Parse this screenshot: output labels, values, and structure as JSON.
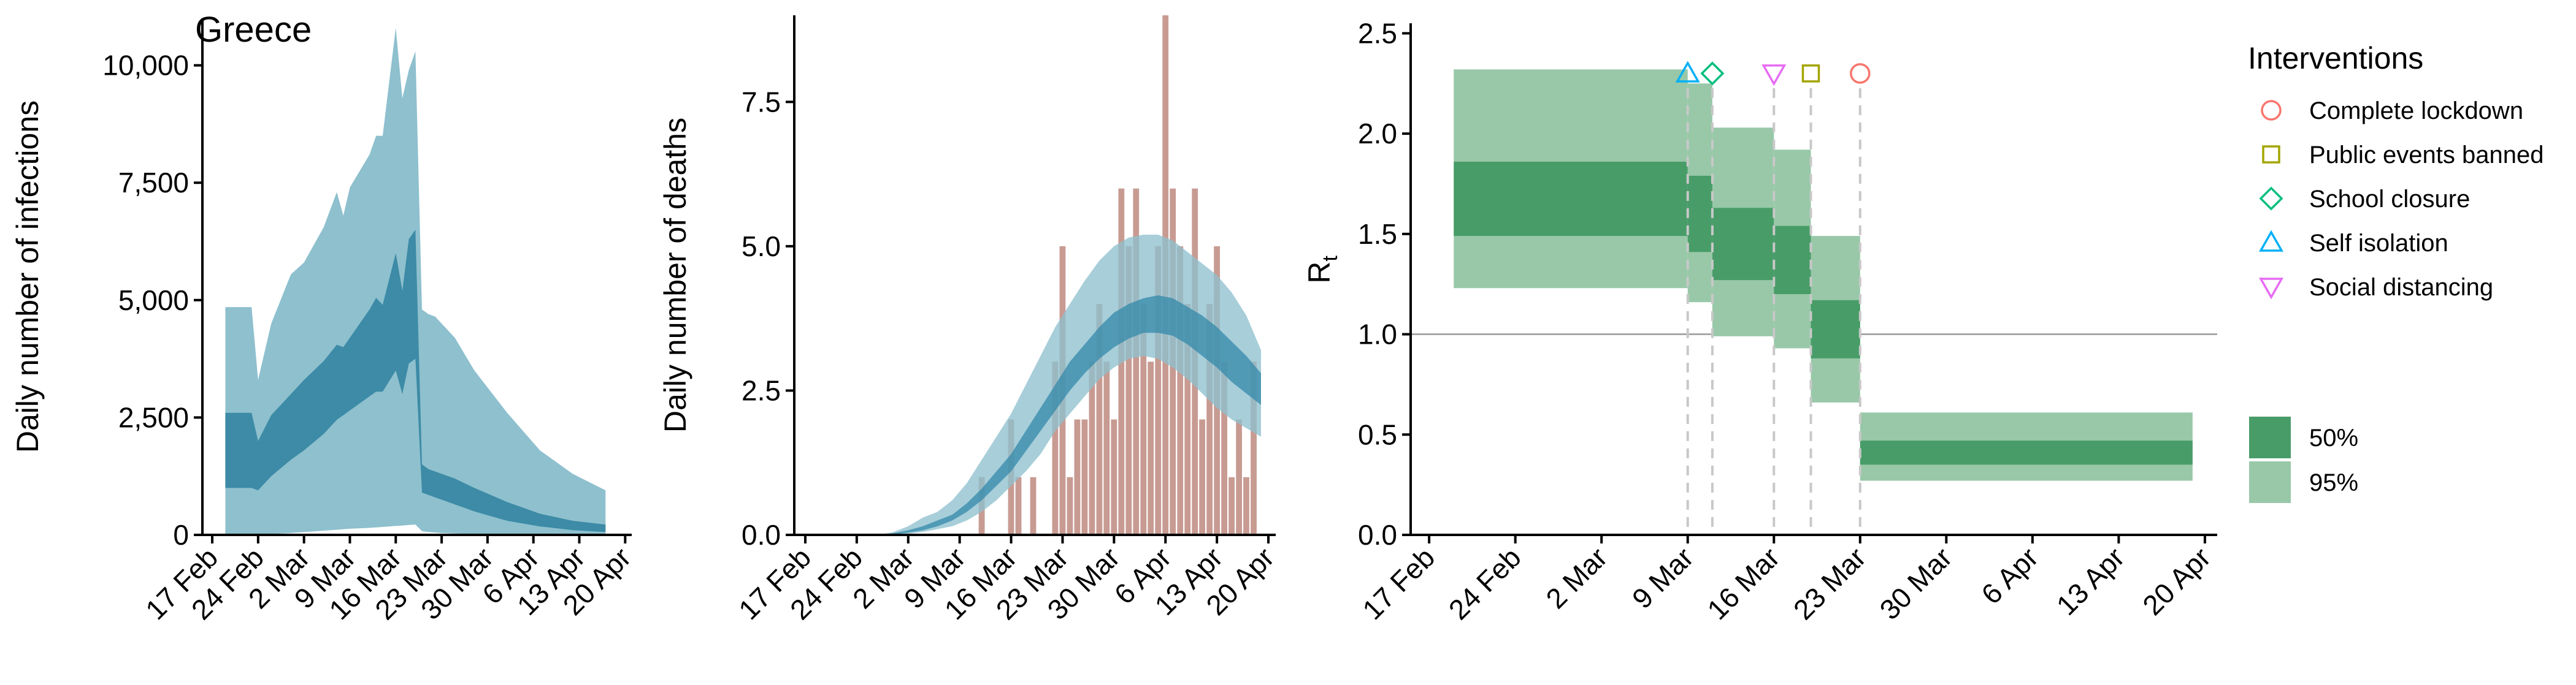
{
  "colors": {
    "infection_outer": "#8ec0ce",
    "infection_inner": "#3d8ba6",
    "death_outer": "#8ec0ce",
    "death_inner": "#2f86a8",
    "death_bar": "#c89b92",
    "rt_outer": "#98c8a8",
    "rt_inner": "#489c68",
    "ref_line": "#999999",
    "vline": "#c8c8c8",
    "complete_lockdown": "#f8766d",
    "public_events_banned": "#a3a500",
    "school_closure": "#00bf7d",
    "self_isolation": "#00b0f6",
    "social_distancing": "#e76bf3"
  },
  "chart_data": [
    {
      "id": "infections",
      "type": "area",
      "title": "Greece",
      "xlabel": "",
      "ylabel": "Daily number of infections",
      "x_tick_labels": [
        "17 Feb",
        "24 Feb",
        "2 Mar",
        "9 Mar",
        "16 Mar",
        "23 Mar",
        "30 Mar",
        "6 Apr",
        "13 Apr",
        "20 Apr"
      ],
      "x_ticks_day": [
        0,
        7,
        14,
        21,
        28,
        35,
        42,
        49,
        56,
        63
      ],
      "xlim_day": [
        -1.5,
        64
      ],
      "y_ticks": [
        0,
        2500,
        5000,
        7500,
        10000
      ],
      "y_tick_labels": [
        "0",
        "2,500",
        "5,000",
        "7,500",
        "10,000"
      ],
      "ylim": [
        0,
        11000
      ],
      "series": [
        {
          "band": "95%",
          "day": [
            2,
            6,
            7,
            9,
            12,
            14,
            17,
            19,
            20,
            21,
            24,
            25,
            26,
            28,
            29,
            30,
            31,
            32,
            33,
            34,
            35,
            37,
            40,
            45,
            50,
            55,
            60
          ],
          "upper": [
            4850,
            4850,
            3300,
            4500,
            5550,
            5800,
            6550,
            7300,
            6800,
            7400,
            8100,
            8500,
            8500,
            10800,
            9300,
            9900,
            10300,
            4800,
            4700,
            4650,
            4500,
            4200,
            3500,
            2600,
            1800,
            1300,
            950
          ],
          "lower": [
            0,
            0,
            0,
            20,
            40,
            60,
            90,
            110,
            120,
            130,
            150,
            160,
            170,
            190,
            200,
            210,
            220,
            80,
            60,
            50,
            40,
            30,
            20,
            10,
            5,
            3,
            0
          ]
        },
        {
          "band": "50%",
          "day": [
            2,
            6,
            7,
            9,
            12,
            14,
            17,
            19,
            20,
            21,
            24,
            25,
            26,
            28,
            29,
            30,
            31,
            32,
            33,
            34,
            35,
            37,
            40,
            45,
            50,
            55,
            60
          ],
          "upper": [
            2600,
            2600,
            2000,
            2550,
            3000,
            3300,
            3700,
            4050,
            4000,
            4200,
            4800,
            5050,
            4900,
            6000,
            5200,
            6300,
            6500,
            1500,
            1400,
            1350,
            1300,
            1200,
            1000,
            700,
            450,
            300,
            220
          ],
          "lower": [
            1000,
            1000,
            950,
            1250,
            1600,
            1800,
            2150,
            2450,
            2550,
            2650,
            2950,
            3050,
            3050,
            3500,
            3000,
            3650,
            3750,
            900,
            850,
            800,
            750,
            650,
            500,
            300,
            180,
            100,
            60
          ]
        }
      ]
    },
    {
      "id": "deaths",
      "type": "bar",
      "title": "",
      "xlabel": "",
      "ylabel": "Daily number of deaths",
      "x_tick_labels": [
        "17 Feb",
        "24 Feb",
        "2 Mar",
        "9 Mar",
        "16 Mar",
        "23 Mar",
        "30 Mar",
        "6 Apr",
        "13 Apr",
        "20 Apr"
      ],
      "x_ticks_day": [
        0,
        7,
        14,
        21,
        28,
        35,
        42,
        49,
        56,
        63
      ],
      "xlim_day": [
        -1.5,
        64
      ],
      "y_ticks": [
        0,
        2.5,
        5.0,
        7.5
      ],
      "y_tick_labels": [
        "0.0",
        "2.5",
        "5.0",
        "7.5"
      ],
      "ylim": [
        0,
        9
      ],
      "bars": {
        "day": [
          24,
          28,
          29,
          31,
          34,
          35,
          36,
          37,
          38,
          39,
          40,
          41,
          42,
          43,
          44,
          45,
          46,
          47,
          48,
          49,
          50,
          51,
          52,
          53,
          54,
          55,
          56,
          57,
          58,
          59,
          60,
          61
        ],
        "values": [
          1,
          2,
          1,
          1,
          3,
          5,
          1,
          2,
          2,
          3,
          4,
          3,
          2,
          6,
          5,
          6,
          4,
          3,
          5,
          9,
          6,
          5,
          4,
          6,
          2,
          4,
          5,
          3,
          1,
          2,
          1,
          3
        ]
      },
      "series": [
        {
          "band": "95%",
          "day": [
            10,
            12,
            14,
            16,
            18,
            20,
            22,
            24,
            26,
            28,
            30,
            32,
            34,
            36,
            38,
            40,
            42,
            44,
            46,
            48,
            50,
            52,
            54,
            56,
            58,
            60,
            62
          ],
          "upper": [
            0,
            0.05,
            0.15,
            0.3,
            0.4,
            0.6,
            0.9,
            1.3,
            1.7,
            2.1,
            2.6,
            3.1,
            3.6,
            4.0,
            4.4,
            4.75,
            5.0,
            5.15,
            5.2,
            5.2,
            5.1,
            4.9,
            4.7,
            4.5,
            4.2,
            3.8,
            3.2
          ],
          "lower": [
            0,
            0,
            0.02,
            0.05,
            0.1,
            0.15,
            0.25,
            0.4,
            0.6,
            0.85,
            1.1,
            1.4,
            1.8,
            2.1,
            2.4,
            2.7,
            2.9,
            3.05,
            3.1,
            3.05,
            2.9,
            2.7,
            2.45,
            2.2,
            2.0,
            1.85,
            1.7
          ]
        },
        {
          "band": "50%",
          "day": [
            10,
            12,
            14,
            16,
            18,
            20,
            22,
            24,
            26,
            28,
            30,
            32,
            34,
            36,
            38,
            40,
            42,
            44,
            46,
            48,
            50,
            52,
            54,
            56,
            58,
            60,
            62
          ],
          "upper": [
            0,
            0.03,
            0.08,
            0.15,
            0.25,
            0.35,
            0.55,
            0.8,
            1.1,
            1.4,
            1.8,
            2.2,
            2.6,
            3.0,
            3.3,
            3.6,
            3.85,
            4.0,
            4.1,
            4.15,
            4.1,
            3.95,
            3.8,
            3.6,
            3.35,
            3.1,
            2.8
          ],
          "lower": [
            0,
            0.01,
            0.04,
            0.08,
            0.15,
            0.25,
            0.4,
            0.6,
            0.85,
            1.1,
            1.45,
            1.8,
            2.15,
            2.5,
            2.8,
            3.05,
            3.25,
            3.4,
            3.5,
            3.5,
            3.45,
            3.3,
            3.1,
            2.9,
            2.65,
            2.45,
            2.25
          ]
        }
      ]
    },
    {
      "id": "rt",
      "type": "area",
      "title": "",
      "xlabel": "",
      "ylabel": "R",
      "ylabel_sub": "t",
      "x_tick_labels": [
        "17 Feb",
        "24 Feb",
        "2 Mar",
        "9 Mar",
        "16 Mar",
        "23 Mar",
        "30 Mar",
        "6 Apr",
        "13 Apr",
        "20 Apr"
      ],
      "x_ticks_day": [
        0,
        7,
        14,
        21,
        28,
        35,
        42,
        49,
        56,
        63
      ],
      "xlim_day": [
        -1.5,
        64
      ],
      "y_ticks": [
        0,
        0.5,
        1.0,
        1.5,
        2.0,
        2.5
      ],
      "y_tick_labels": [
        "0.0",
        "0.5",
        "1.0",
        "1.5",
        "2.0",
        "2.5"
      ],
      "ylim": [
        0,
        2.55
      ],
      "reference_line": 1.0,
      "steps": [
        {
          "start": 2,
          "end": 21,
          "lo95": 1.23,
          "hi95": 2.32,
          "lo50": 1.49,
          "hi50": 1.86
        },
        {
          "start": 21,
          "end": 23,
          "lo95": 1.16,
          "hi95": 2.25,
          "lo50": 1.41,
          "hi50": 1.79
        },
        {
          "start": 23,
          "end": 28,
          "lo95": 0.99,
          "hi95": 2.03,
          "lo50": 1.27,
          "hi50": 1.63
        },
        {
          "start": 28,
          "end": 31,
          "lo95": 0.93,
          "hi95": 1.92,
          "lo50": 1.2,
          "hi50": 1.54
        },
        {
          "start": 31,
          "end": 35,
          "lo95": 0.66,
          "hi95": 1.49,
          "lo50": 0.88,
          "hi50": 1.17
        },
        {
          "start": 35,
          "end": 62,
          "lo95": 0.27,
          "hi95": 0.61,
          "lo50": 0.35,
          "hi50": 0.47
        }
      ],
      "interventions": [
        {
          "key": "self_isolation",
          "label": "Self isolation",
          "day": 21,
          "shape": "triangle-up"
        },
        {
          "key": "school_closure",
          "label": "School closure",
          "day": 23,
          "shape": "diamond"
        },
        {
          "key": "social_distancing",
          "label": "Social distancing",
          "day": 28,
          "shape": "triangle-down"
        },
        {
          "key": "public_events_banned",
          "label": "Public events banned",
          "day": 31,
          "shape": "square"
        },
        {
          "key": "complete_lockdown",
          "label": "Complete lockdown",
          "day": 35,
          "shape": "circle"
        }
      ],
      "marker_y": 2.3,
      "legend_interventions": {
        "title": "Interventions",
        "items": [
          {
            "key": "complete_lockdown",
            "label": "Complete lockdown",
            "shape": "circle"
          },
          {
            "key": "public_events_banned",
            "label": "Public events banned",
            "shape": "square"
          },
          {
            "key": "school_closure",
            "label": "School closure",
            "shape": "diamond"
          },
          {
            "key": "self_isolation",
            "label": "Self isolation",
            "shape": "triangle-up"
          },
          {
            "key": "social_distancing",
            "label": "Social distancing",
            "shape": "triangle-down"
          }
        ]
      },
      "legend_bands": {
        "items": [
          {
            "label": "50%",
            "color_key": "rt_inner"
          },
          {
            "label": "95%",
            "color_key": "rt_outer"
          }
        ]
      }
    }
  ]
}
